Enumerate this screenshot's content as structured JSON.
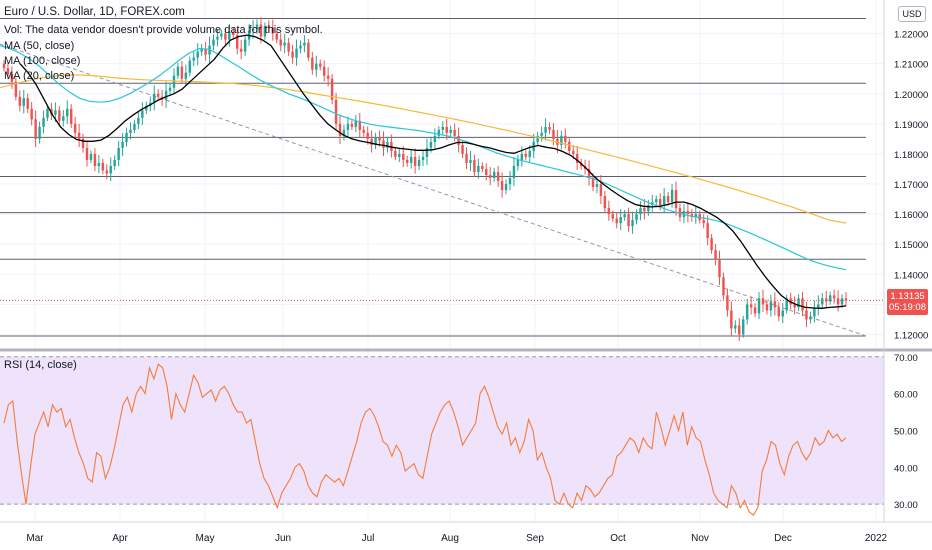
{
  "header": {
    "title": "Euro / U.S. Dollar, 1D, FOREX.com",
    "volume_note": "Vol: The data vendor doesn't provide volume data for this symbol.",
    "ma1": "MA (50, close)",
    "ma2": "MA (100, close)",
    "ma3": "MA (20, close)",
    "currency_button": "USD"
  },
  "last_price": {
    "value": "1.13135",
    "countdown": "05:19:08"
  },
  "rsi": {
    "label": "RSI (14, close)"
  },
  "colors": {
    "bull": "#26a69a",
    "bear": "#ef5350",
    "ma20": "#000000",
    "ma50": "#26c6da",
    "ma100": "#f6b93b",
    "rsi_line": "#f57c3c",
    "rsi_band": "#eee3fb",
    "hline": "#5d606b"
  },
  "chart_data": [
    {
      "type": "candlestick",
      "x_axis_labels": [
        "Mar",
        "Apr",
        "May",
        "Jun",
        "Jul",
        "Aug",
        "Sep",
        "Oct",
        "Nov",
        "Dec",
        "2022"
      ],
      "y_ticks": [
        "1.22000",
        "1.21000",
        "1.20000",
        "1.19000",
        "1.18000",
        "1.17000",
        "1.16000",
        "1.15000",
        "1.14000",
        "1.13000",
        "1.12000"
      ],
      "ylim": [
        1.1165,
        1.2295
      ],
      "horizontal_levels": [
        1.225,
        1.2035,
        1.1855,
        1.1725,
        1.1605,
        1.145,
        1.1195
      ],
      "trendline": {
        "start": {
          "month": "Mar",
          "price": 1.2165
        },
        "end": {
          "month": "2022",
          "price": 1.1195
        }
      },
      "close_series": [
        1.2085,
        1.2065,
        1.204,
        1.199,
        1.196,
        1.1985,
        1.195,
        1.1915,
        1.185,
        1.189,
        1.192,
        1.195,
        1.193,
        1.1945,
        1.191,
        1.1925,
        1.195,
        1.19,
        1.187,
        1.185,
        1.182,
        1.178,
        1.18,
        1.176,
        1.177,
        1.1745,
        1.1735,
        1.176,
        1.178,
        1.182,
        1.184,
        1.187,
        1.188,
        1.19,
        1.192,
        1.1945,
        1.196,
        1.197,
        1.2,
        1.199,
        1.198,
        1.201,
        1.202,
        1.206,
        1.209,
        1.205,
        1.207,
        1.211,
        1.212,
        1.214,
        1.215,
        1.213,
        1.216,
        1.218,
        1.219,
        1.22,
        1.218,
        1.2205,
        1.2195,
        1.215,
        1.214,
        1.218,
        1.221,
        1.2215,
        1.223,
        1.219,
        1.2225,
        1.222,
        1.22,
        1.218,
        1.216,
        1.217,
        1.214,
        1.212,
        1.215,
        1.216,
        1.217,
        1.212,
        1.208,
        1.21,
        1.209,
        1.206,
        1.205,
        1.198,
        1.19,
        1.186,
        1.188,
        1.19,
        1.189,
        1.191,
        1.188,
        1.187,
        1.185,
        1.183,
        1.1855,
        1.1845,
        1.182,
        1.184,
        1.181,
        1.179,
        1.18,
        1.178,
        1.177,
        1.179,
        1.176,
        1.178,
        1.179,
        1.182,
        1.184,
        1.186,
        1.188,
        1.189,
        1.187,
        1.188,
        1.186,
        1.183,
        1.18,
        1.177,
        1.178,
        1.174,
        1.176,
        1.175,
        1.173,
        1.172,
        1.174,
        1.171,
        1.168,
        1.17,
        1.172,
        1.176,
        1.178,
        1.18,
        1.179,
        1.181,
        1.184,
        1.186,
        1.187,
        1.189,
        1.188,
        1.185,
        1.183,
        1.186,
        1.184,
        1.181,
        1.18,
        1.177,
        1.176,
        1.175,
        1.172,
        1.169,
        1.17,
        1.166,
        1.162,
        1.16,
        1.1585,
        1.157,
        1.159,
        1.16,
        1.156,
        1.158,
        1.16,
        1.162,
        1.161,
        1.163,
        1.164,
        1.165,
        1.163,
        1.166,
        1.164,
        1.168,
        1.162,
        1.159,
        1.161,
        1.16,
        1.159,
        1.16,
        1.158,
        1.157,
        1.152,
        1.148,
        1.145,
        1.139,
        1.133,
        1.128,
        1.122,
        1.123,
        1.12,
        1.125,
        1.13,
        1.129,
        1.127,
        1.132,
        1.13,
        1.128,
        1.131,
        1.129,
        1.126,
        1.128,
        1.132,
        1.13,
        1.129,
        1.132,
        1.128,
        1.125,
        1.126,
        1.129,
        1.13,
        1.132,
        1.131,
        1.133,
        1.132,
        1.13,
        1.132,
        1.1313
      ],
      "ma20_series": [
        1.21,
        1.207,
        1.203,
        1.198,
        1.193,
        1.189,
        1.1865,
        1.1848,
        1.1842,
        1.1842,
        1.1846,
        1.1862,
        1.1885,
        1.191,
        1.193,
        1.1948,
        1.1962,
        1.1978,
        1.199,
        1.2,
        1.2015,
        1.204,
        1.2065,
        1.209,
        1.2115,
        1.215,
        1.2178,
        1.219,
        1.2195,
        1.219,
        1.2178,
        1.216,
        1.212,
        1.208,
        1.204,
        1.2,
        1.1965,
        1.193,
        1.19,
        1.188,
        1.1862,
        1.185,
        1.1843,
        1.1838,
        1.1832,
        1.1828,
        1.1822,
        1.1818,
        1.1815,
        1.1812,
        1.1812,
        1.1814,
        1.182,
        1.183,
        1.1838,
        1.1838,
        1.1832,
        1.1825,
        1.182,
        1.1812,
        1.1805,
        1.1802,
        1.1812,
        1.1822,
        1.1828,
        1.1822,
        1.1818,
        1.1808,
        1.1795,
        1.1775,
        1.175,
        1.1722,
        1.17,
        1.168,
        1.1662,
        1.1645,
        1.1632,
        1.1626,
        1.1624,
        1.1626,
        1.1632,
        1.164,
        1.164,
        1.1632,
        1.162,
        1.1605,
        1.159,
        1.157,
        1.1545,
        1.151,
        1.147,
        1.143,
        1.1393,
        1.136,
        1.133,
        1.131,
        1.1298,
        1.129,
        1.1288,
        1.1287,
        1.129,
        1.1292,
        1.1295
      ],
      "ma50_series": [
        1.216,
        1.215,
        1.2135,
        1.2115,
        1.209,
        1.206,
        1.203,
        1.2005,
        1.1985,
        1.1975,
        1.1972,
        1.1975,
        1.1985,
        1.2,
        1.2018,
        1.2038,
        1.206,
        1.2085,
        1.2112,
        1.2135,
        1.215,
        1.2148,
        1.213,
        1.211,
        1.209,
        1.2068,
        1.2048,
        1.203,
        1.2015,
        1.2,
        1.1988,
        1.1975,
        1.196,
        1.1945,
        1.193,
        1.1918,
        1.1908,
        1.19,
        1.1894,
        1.189,
        1.1886,
        1.1882,
        1.1878,
        1.1872,
        1.1866,
        1.186,
        1.185,
        1.184,
        1.1828,
        1.1815,
        1.1802,
        1.1792,
        1.1782,
        1.1773,
        1.1765,
        1.1757,
        1.1749,
        1.174,
        1.1732,
        1.1723,
        1.1713,
        1.17,
        1.1685,
        1.167,
        1.1655,
        1.164,
        1.1627,
        1.1615,
        1.1605,
        1.1596,
        1.159,
        1.1585,
        1.1578,
        1.1568,
        1.1555,
        1.1542,
        1.1528,
        1.1513,
        1.1498,
        1.1483,
        1.1467,
        1.1452,
        1.144,
        1.143,
        1.1422,
        1.1415
      ],
      "ma100_series": [
        1.202,
        1.2035,
        1.2048,
        1.2058,
        1.2063,
        1.2062,
        1.2058,
        1.2052,
        1.2048,
        1.2045,
        1.2043,
        1.2041,
        1.2039,
        1.2036,
        1.2033,
        1.2028,
        1.2021,
        1.2014,
        1.2006,
        1.1996,
        1.1987,
        1.1978,
        1.1968,
        1.1958,
        1.1947,
        1.1936,
        1.1925,
        1.1914,
        1.1902,
        1.189,
        1.1878,
        1.1865,
        1.1852,
        1.1838,
        1.1824,
        1.181,
        1.1796,
        1.1782,
        1.1767,
        1.1752,
        1.1737,
        1.1722,
        1.1706,
        1.169,
        1.1673,
        1.1656,
        1.1638,
        1.162,
        1.16,
        1.158,
        1.157
      ]
    },
    {
      "type": "line",
      "title": "RSI (14, close)",
      "y_ticks": [
        "70.00",
        "60.00",
        "50.00",
        "40.00",
        "30.00"
      ],
      "band": [
        30,
        70
      ],
      "ylim": [
        25.7,
        71.3
      ],
      "values": [
        52,
        57,
        58,
        47,
        38,
        30,
        40,
        49,
        52,
        55,
        51,
        57,
        55,
        56,
        51,
        53,
        48,
        44,
        41,
        37,
        36,
        44,
        43,
        37,
        40,
        45,
        51,
        57,
        59,
        55,
        60,
        62,
        60,
        67,
        64,
        68,
        67,
        62,
        53,
        60,
        57,
        55,
        60,
        65,
        63,
        59,
        60,
        61,
        58,
        61,
        62,
        60,
        57,
        55,
        55,
        52,
        53,
        47,
        41,
        37,
        35,
        32,
        29,
        33,
        35,
        37,
        40,
        41,
        39,
        35,
        33,
        32,
        36,
        38,
        37,
        36,
        37,
        35,
        39,
        43,
        47,
        52,
        55,
        56,
        54,
        51,
        47,
        46,
        43,
        46,
        44,
        39,
        40,
        41,
        38,
        37,
        43,
        49,
        52,
        55,
        57,
        58,
        55,
        51,
        46,
        48,
        50,
        52,
        60,
        62,
        59,
        55,
        51,
        49,
        52,
        46,
        48,
        44,
        47,
        53,
        50,
        42,
        44,
        40,
        37,
        31,
        30,
        33,
        30,
        29,
        33,
        31,
        35,
        34,
        32,
        33,
        35,
        37,
        38,
        43,
        44,
        46,
        48,
        47,
        44,
        48,
        46,
        45,
        55,
        51,
        46,
        50,
        54,
        50,
        55,
        46,
        51,
        48,
        47,
        42,
        38,
        33,
        31,
        30,
        29,
        35,
        33,
        29,
        31,
        28,
        27,
        29,
        39,
        42,
        47,
        46,
        41,
        38,
        43,
        46,
        47,
        44,
        42,
        44,
        48,
        46,
        47,
        50,
        48,
        49,
        47,
        48
      ]
    }
  ]
}
